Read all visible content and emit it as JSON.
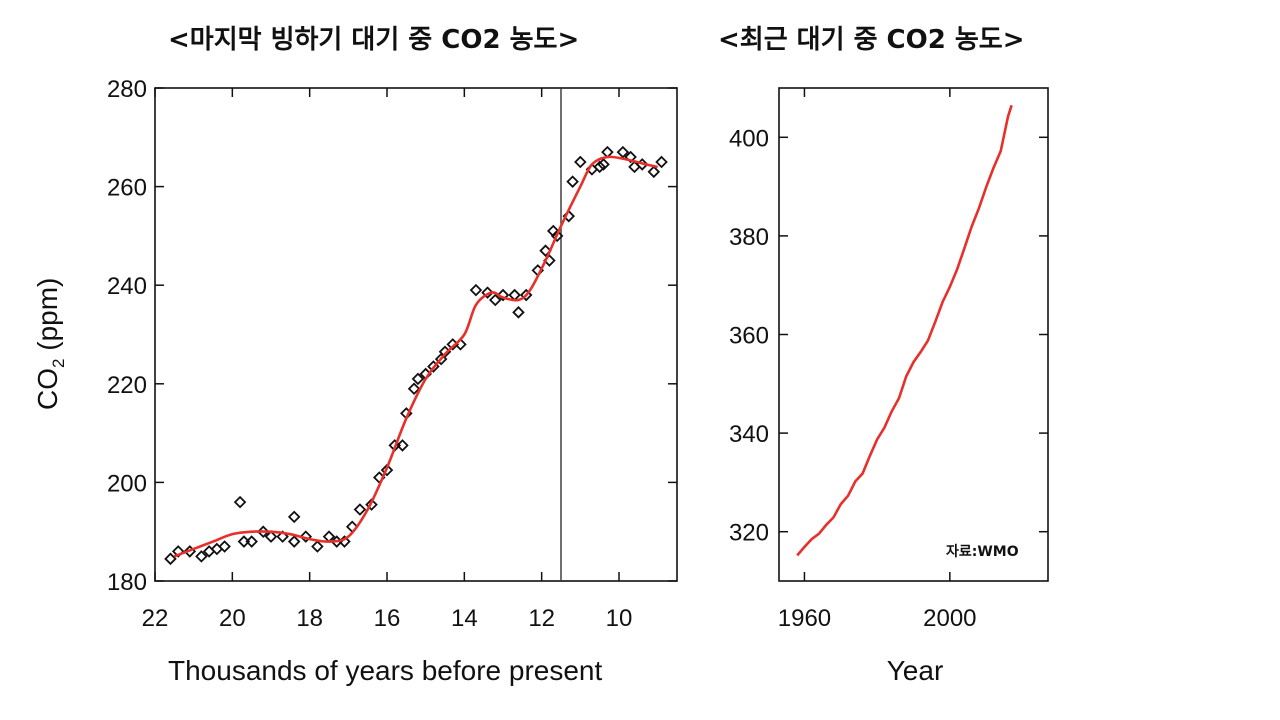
{
  "colors": {
    "trend": "#e8302a",
    "axis": "#111111",
    "marker": "#111111",
    "background": "#ffffff"
  },
  "chart_data": [
    {
      "type": "scatter",
      "title": "<마지막 빙하기 대기 중 CO2 농도>",
      "xlabel": "Thousands of years before present",
      "ylabel_main": "CO",
      "ylabel_sub": "2",
      "ylabel_rest": " (ppm)",
      "xlim": [
        22,
        8.5
      ],
      "ylim": [
        180,
        280
      ],
      "x_reversed": true,
      "x_ticks": [
        22,
        20,
        18,
        16,
        14,
        12,
        10
      ],
      "y_ticks": [
        180,
        200,
        220,
        240,
        260,
        280
      ],
      "vertical_line_x": 11.5,
      "grid": false,
      "series": [
        {
          "marker": "diamond",
          "points": [
            [
              21.6,
              184.5
            ],
            [
              21.4,
              186
            ],
            [
              21.1,
              186
            ],
            [
              20.8,
              185
            ],
            [
              20.6,
              186
            ],
            [
              20.4,
              186.5
            ],
            [
              20.2,
              187
            ],
            [
              19.8,
              196
            ],
            [
              19.7,
              188
            ],
            [
              19.5,
              188
            ],
            [
              19.2,
              190
            ],
            [
              19.0,
              189
            ],
            [
              18.7,
              189
            ],
            [
              18.4,
              193
            ],
            [
              18.4,
              188
            ],
            [
              18.1,
              189
            ],
            [
              17.8,
              187
            ],
            [
              17.5,
              189
            ],
            [
              17.3,
              188
            ],
            [
              17.1,
              188
            ],
            [
              16.9,
              191
            ],
            [
              16.7,
              194.5
            ],
            [
              16.4,
              195.5
            ],
            [
              16.2,
              201
            ],
            [
              16.0,
              202.5
            ],
            [
              15.8,
              207.5
            ],
            [
              15.6,
              207.5
            ],
            [
              15.5,
              214
            ],
            [
              15.3,
              219
            ],
            [
              15.2,
              221
            ],
            [
              15.0,
              222
            ],
            [
              14.8,
              223.5
            ],
            [
              14.6,
              225
            ],
            [
              14.5,
              226.5
            ],
            [
              14.3,
              228
            ],
            [
              14.1,
              228
            ],
            [
              13.7,
              239
            ],
            [
              13.4,
              238.5
            ],
            [
              13.2,
              237
            ],
            [
              13.0,
              238
            ],
            [
              12.7,
              238
            ],
            [
              12.6,
              234.5
            ],
            [
              12.4,
              238
            ],
            [
              12.1,
              243
            ],
            [
              11.9,
              247
            ],
            [
              11.8,
              245
            ],
            [
              11.7,
              251
            ],
            [
              11.6,
              250
            ],
            [
              11.3,
              254
            ],
            [
              11.2,
              261
            ],
            [
              11.0,
              265
            ],
            [
              10.7,
              263.5
            ],
            [
              10.5,
              264
            ],
            [
              10.4,
              264.5
            ],
            [
              10.3,
              267
            ],
            [
              9.9,
              267
            ],
            [
              9.7,
              266
            ],
            [
              9.6,
              264
            ],
            [
              9.4,
              264.5
            ],
            [
              9.1,
              263
            ],
            [
              8.9,
              265
            ]
          ]
        },
        {
          "name": "",
          "style": "line",
          "points": [
            [
              21.5,
              185
            ],
            [
              21.0,
              186.5
            ],
            [
              20.5,
              188
            ],
            [
              20.0,
              189.5
            ],
            [
              19.5,
              190
            ],
            [
              19.0,
              190
            ],
            [
              18.5,
              189.5
            ],
            [
              18.0,
              188.5
            ],
            [
              17.5,
              188
            ],
            [
              17.0,
              189
            ],
            [
              16.5,
              194.5
            ],
            [
              16.0,
              203
            ],
            [
              15.5,
              213
            ],
            [
              15.0,
              221
            ],
            [
              14.5,
              226
            ],
            [
              14.0,
              230
            ],
            [
              13.7,
              236
            ],
            [
              13.3,
              238.5
            ],
            [
              13.0,
              237.5
            ],
            [
              12.6,
              237
            ],
            [
              12.3,
              239
            ],
            [
              11.9,
              245
            ],
            [
              11.5,
              252
            ],
            [
              11.0,
              260
            ],
            [
              10.7,
              264.5
            ],
            [
              10.3,
              266
            ],
            [
              9.8,
              265.5
            ],
            [
              9.3,
              264.5
            ],
            [
              9.0,
              264
            ]
          ]
        }
      ]
    },
    {
      "type": "line",
      "title": "<최근 대기 중 CO2 농도>",
      "xlabel": "Year",
      "xlim": [
        1953,
        2027
      ],
      "ylim": [
        310,
        410
      ],
      "x_ticks": [
        1960,
        2000
      ],
      "y_ticks": [
        320,
        340,
        360,
        380,
        400
      ],
      "note": "자료:WMO",
      "series": [
        {
          "name": "",
          "x": [
            1958,
            1960,
            1962,
            1964,
            1966,
            1968,
            1970,
            1972,
            1974,
            1976,
            1978,
            1980,
            1982,
            1984,
            1986,
            1988,
            1990,
            1992,
            1994,
            1996,
            1998,
            2000,
            2002,
            2004,
            2006,
            2008,
            2010,
            2012,
            2014,
            2016,
            2017
          ],
          "y": [
            315.2,
            316.9,
            318.5,
            319.6,
            321.4,
            322.9,
            325.6,
            327.3,
            330.2,
            331.8,
            335.4,
            338.7,
            341.1,
            344.4,
            347.1,
            351.5,
            354.4,
            356.5,
            358.8,
            362.6,
            366.6,
            369.7,
            373.2,
            377.5,
            381.9,
            385.6,
            389.9,
            393.8,
            397.2,
            404.2,
            406.5
          ]
        }
      ]
    }
  ]
}
